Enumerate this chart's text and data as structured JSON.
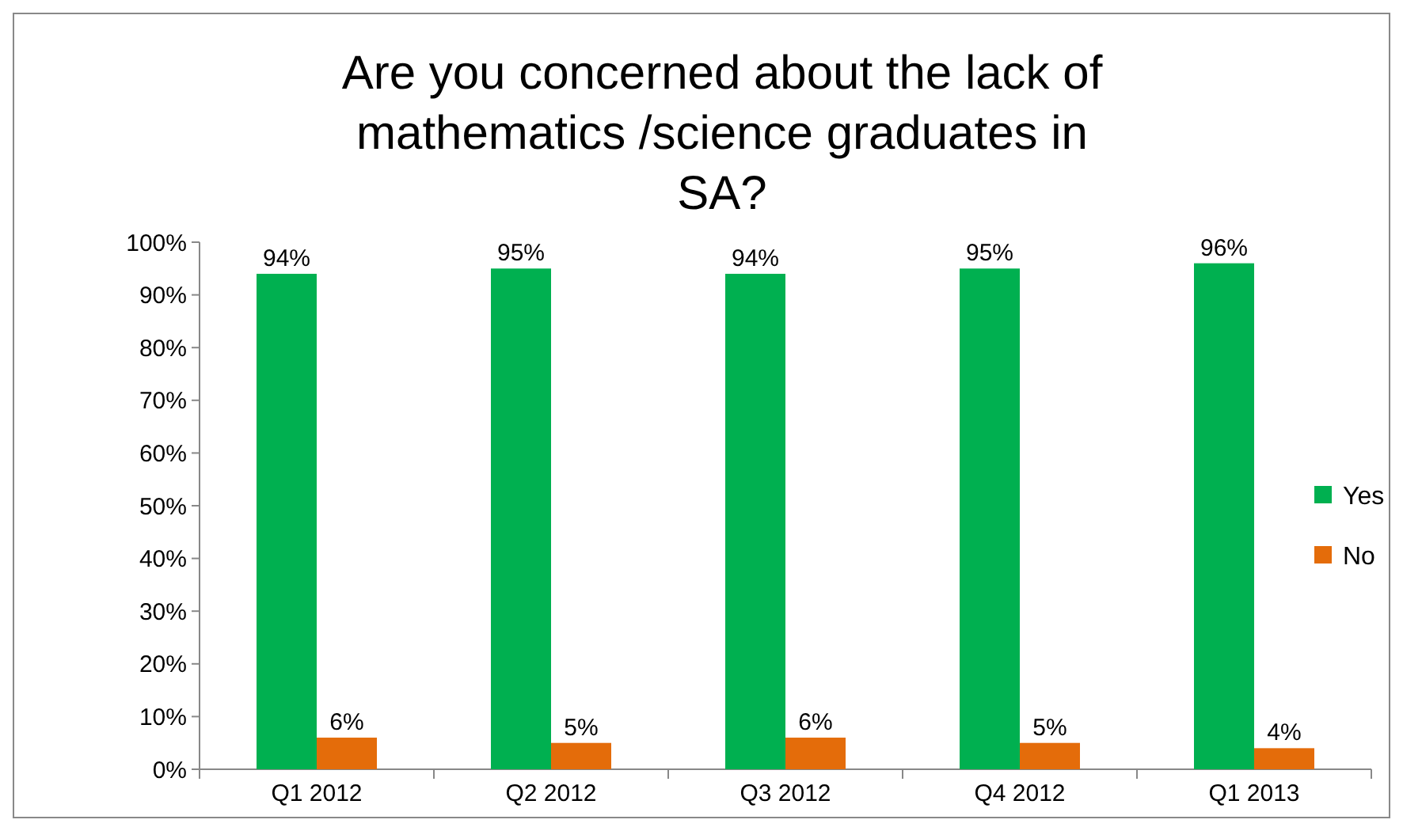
{
  "chart_data": {
    "type": "bar",
    "title": "Are you concerned about the lack of mathematics /science graduates in SA?",
    "categories": [
      "Q1 2012",
      "Q2 2012",
      "Q3 2012",
      "Q4 2012",
      "Q1 2013"
    ],
    "series": [
      {
        "name": "Yes",
        "color": "#00b050",
        "values": [
          94,
          95,
          94,
          95,
          96
        ],
        "value_labels": [
          "94%",
          "95%",
          "94%",
          "95%",
          "96%"
        ]
      },
      {
        "name": "No",
        "color": "#e46c0a",
        "values": [
          6,
          5,
          6,
          5,
          4
        ],
        "value_labels": [
          "6%",
          "5%",
          "6%",
          "5%",
          "4%"
        ]
      }
    ],
    "ylim": [
      0,
      100
    ],
    "yticks": [
      {
        "value": 0,
        "label": "0%"
      },
      {
        "value": 10,
        "label": "10%"
      },
      {
        "value": 20,
        "label": "20%"
      },
      {
        "value": 30,
        "label": "30%"
      },
      {
        "value": 40,
        "label": "40%"
      },
      {
        "value": 50,
        "label": "50%"
      },
      {
        "value": 60,
        "label": "60%"
      },
      {
        "value": 70,
        "label": "70%"
      },
      {
        "value": 80,
        "label": "80%"
      },
      {
        "value": 90,
        "label": "90%"
      },
      {
        "value": 100,
        "label": "100%"
      }
    ],
    "legend": "right",
    "grid": false
  }
}
